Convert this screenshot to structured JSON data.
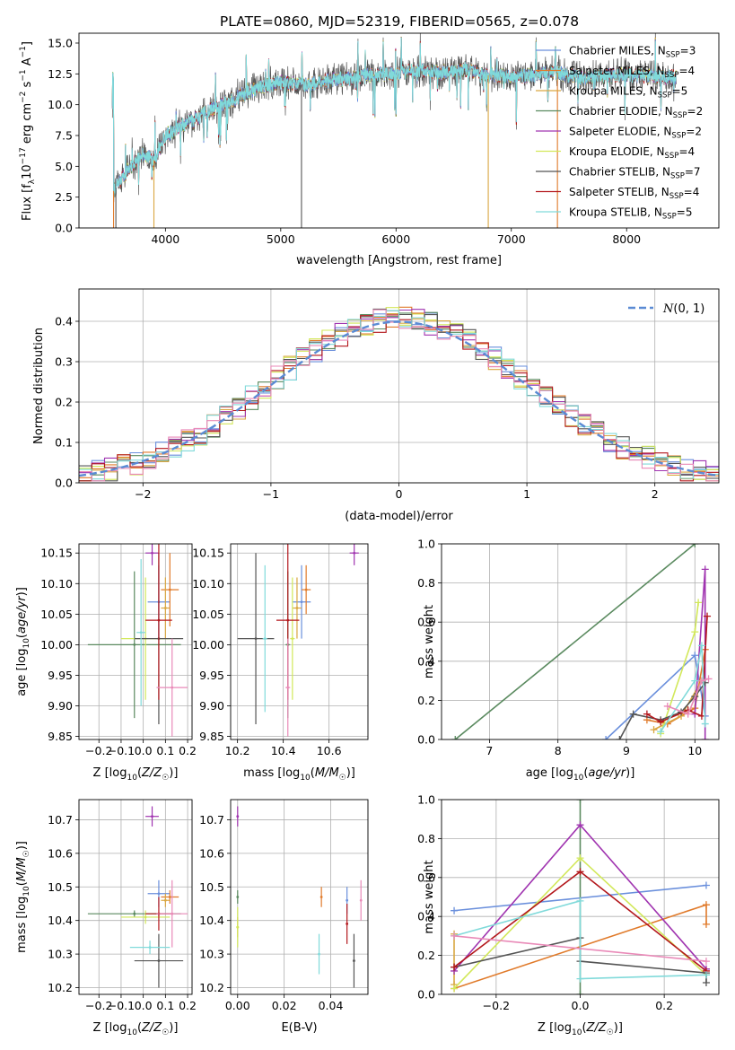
{
  "figure_title": "PLATE=0860, MJD=52319, FIBERID=0565, z=0.078",
  "colors": {
    "Chabrier MILES": "#6a8fdc",
    "Salpeter MILES": "#e07a2a",
    "Kroupa MILES": "#d9a640",
    "Chabrier ELODIE": "#5a8a5f",
    "Salpeter ELODIE": "#a034b0",
    "Kroupa ELODIE": "#d2e85a",
    "Chabrier STELIB": "#555555",
    "Salpeter STELIB": "#b3171c",
    "Kroupa STELIB": "#80dada",
    "extra": "#e98ab8",
    "gauss": "#5b8bd4"
  },
  "chart_data": [
    {
      "type": "line",
      "title": "PLATE=0860, MJD=52319, FIBERID=0565, z=0.078",
      "xlabel": "wavelength [Angstrom, rest frame]",
      "ylabel": "Flux [f_λ 10^-17 erg cm^-2 s^-1 A^-1]",
      "xlim": [
        3250,
        8800
      ],
      "ylim": [
        0,
        15.8
      ],
      "xticks": [
        4000,
        5000,
        6000,
        7000,
        8000
      ],
      "yticks": [
        0.0,
        2.5,
        5.0,
        7.5,
        10.0,
        12.5,
        15.0
      ],
      "legend": "upper-right",
      "legend_entries": [
        {
          "model": "Chabrier MILES",
          "nssp": "3"
        },
        {
          "model": "Salpeter MILES",
          "nssp": "4"
        },
        {
          "model": "Kroupa MILES",
          "nssp": "5"
        },
        {
          "model": "Chabrier ELODIE",
          "nssp": "2"
        },
        {
          "model": "Salpeter ELODIE",
          "nssp": "2"
        },
        {
          "model": "Kroupa ELODIE",
          "nssp": "4"
        },
        {
          "model": "Chabrier STELIB",
          "nssp": "7"
        },
        {
          "model": "Salpeter STELIB",
          "nssp": "4"
        },
        {
          "model": "Kroupa STELIB",
          "nssp": "5"
        }
      ],
      "continuum": [
        [
          3550,
          3.0
        ],
        [
          3700,
          5.0
        ],
        [
          3800,
          6.0
        ],
        [
          3900,
          5.5
        ],
        [
          4000,
          7.5
        ],
        [
          4200,
          8.6
        ],
        [
          4400,
          9.6
        ],
        [
          4600,
          10.5
        ],
        [
          4800,
          11.4
        ],
        [
          5000,
          11.8
        ],
        [
          5200,
          11.6
        ],
        [
          5400,
          12.0
        ],
        [
          5600,
          12.1
        ],
        [
          5800,
          12.4
        ],
        [
          6000,
          12.6
        ],
        [
          6200,
          12.9
        ],
        [
          6400,
          12.6
        ],
        [
          6600,
          12.8
        ],
        [
          6800,
          12.4
        ],
        [
          7000,
          12.3
        ],
        [
          7200,
          12.4
        ],
        [
          7400,
          12.6
        ],
        [
          7600,
          12.2
        ],
        [
          7800,
          12.3
        ],
        [
          8000,
          12.4
        ],
        [
          8200,
          12.3
        ],
        [
          8400,
          12.2
        ]
      ]
    },
    {
      "type": "histogram",
      "xlabel": "(data-model)/error",
      "ylabel": "Normed distribution",
      "xlim": [
        -2.5,
        2.5
      ],
      "ylim": [
        0,
        0.48
      ],
      "xticks": [
        -2,
        -1,
        0,
        1,
        2
      ],
      "yticks": [
        0.0,
        0.1,
        0.2,
        0.3,
        0.4
      ],
      "grid": true,
      "legend": "upper-right",
      "gauss_label": "N(0,1)",
      "bin_width": 0.1,
      "n_bins": 50
    },
    {
      "type": "scatter",
      "xlabel": "Z [log10(Z/Z☉)]",
      "ylabel": "age  [log10(age/yr)]",
      "xlim": [
        -0.29,
        0.22
      ],
      "ylim": [
        9.845,
        10.165
      ],
      "xticks": [
        -0.2,
        -0.1,
        0.0,
        0.1,
        0.2
      ],
      "yticks": [
        9.85,
        9.9,
        9.95,
        10.0,
        10.05,
        10.1,
        10.15
      ],
      "grid": true,
      "points": [
        {
          "model": "Chabrier MILES",
          "x": 0.07,
          "xerr": 0.05,
          "y": 10.07,
          "yerr": 0.06
        },
        {
          "model": "Salpeter MILES",
          "x": 0.12,
          "xerr": 0.04,
          "y": 10.09,
          "yerr": 0.06
        },
        {
          "model": "Kroupa MILES",
          "x": 0.1,
          "xerr": 0.02,
          "y": 10.06,
          "yerr": 0.05
        },
        {
          "model": "Chabrier ELODIE",
          "x": -0.04,
          "xerr": 0.21,
          "y": 10.0,
          "yerr": 0.12
        },
        {
          "model": "Salpeter ELODIE",
          "x": 0.04,
          "xerr": 0.03,
          "y": 10.15,
          "yerr": 0.02
        },
        {
          "model": "Kroupa ELODIE",
          "x": 0.01,
          "xerr": 0.11,
          "y": 10.01,
          "yerr": 0.1
        },
        {
          "model": "Chabrier STELIB",
          "x": 0.07,
          "xerr": 0.11,
          "y": 10.01,
          "yerr": 0.14
        },
        {
          "model": "Salpeter STELIB",
          "x": 0.07,
          "xerr": 0.06,
          "y": 10.04,
          "yerr": 0.13
        },
        {
          "model": "Kroupa STELIB",
          "x": -0.01,
          "xerr": 0.02,
          "y": 10.02,
          "yerr": 0.12
        },
        {
          "model": "extra",
          "x": 0.13,
          "xerr": 0.07,
          "y": 9.93,
          "yerr": 0.08
        }
      ]
    },
    {
      "type": "scatter",
      "xlabel": "mass [log10(M/M☉)]",
      "ylabel": "",
      "xlim": [
        10.17,
        10.77
      ],
      "ylim": [
        9.845,
        10.165
      ],
      "xticks": [
        10.2,
        10.4,
        10.6
      ],
      "yticks": [
        9.85,
        9.9,
        9.95,
        10.0,
        10.05,
        10.1,
        10.15
      ],
      "grid": true,
      "points": [
        {
          "model": "Chabrier MILES",
          "x": 10.48,
          "xerr": 0.04,
          "y": 10.07,
          "yerr": 0.06
        },
        {
          "model": "Salpeter MILES",
          "x": 10.5,
          "xerr": 0.02,
          "y": 10.09,
          "yerr": 0.04
        },
        {
          "model": "Kroupa MILES",
          "x": 10.46,
          "xerr": 0.02,
          "y": 10.06,
          "yerr": 0.05
        },
        {
          "model": "Chabrier ELODIE",
          "x": 10.42,
          "xerr": 0.01,
          "y": 10.0,
          "yerr": 0.12
        },
        {
          "model": "Salpeter ELODIE",
          "x": 10.71,
          "xerr": 0.02,
          "y": 10.15,
          "yerr": 0.02
        },
        {
          "model": "Kroupa ELODIE",
          "x": 10.44,
          "xerr": 0.01,
          "y": 10.01,
          "yerr": 0.1
        },
        {
          "model": "Chabrier STELIB",
          "x": 10.28,
          "xerr": 0.08,
          "y": 10.01,
          "yerr": 0.14
        },
        {
          "model": "Salpeter STELIB",
          "x": 10.42,
          "xerr": 0.05,
          "y": 10.04,
          "yerr": 0.13
        },
        {
          "model": "Kroupa STELIB",
          "x": 10.32,
          "xerr": 0.01,
          "y": 10.01,
          "yerr": 0.12
        },
        {
          "model": "extra",
          "x": 10.42,
          "xerr": 0.01,
          "y": 9.93,
          "yerr": 0.08
        }
      ]
    },
    {
      "type": "line",
      "xlabel": "age  [log10(age/yr)]",
      "ylabel": "mass weight",
      "xlim": [
        6.3,
        10.35
      ],
      "ylim": [
        0,
        1.0
      ],
      "xticks": [
        7,
        8,
        9,
        10
      ],
      "yticks": [
        0.0,
        0.2,
        0.4,
        0.6,
        0.8,
        1.0
      ],
      "grid": true,
      "series": [
        {
          "model": "Chabrier ELODIE",
          "x": [
            6.5,
            10.0
          ],
          "y": [
            0.0,
            1.0
          ]
        },
        {
          "model": "Chabrier MILES",
          "x": [
            8.7,
            10.0,
            10.15
          ],
          "y": [
            0.0,
            0.43,
            0.12
          ]
        },
        {
          "model": "Salpeter MILES",
          "x": [
            9.3,
            9.6,
            10.0,
            10.15
          ],
          "y": [
            0.1,
            0.08,
            0.16,
            0.46
          ]
        },
        {
          "model": "Kroupa MILES",
          "x": [
            9.4,
            9.8,
            10.1
          ],
          "y": [
            0.05,
            0.12,
            0.3
          ]
        },
        {
          "model": "Salpeter ELODIE",
          "x": [
            10.0,
            10.15,
            10.15
          ],
          "y": [
            0.13,
            0.87,
            0.0
          ]
        },
        {
          "model": "Kroupa ELODIE",
          "x": [
            9.5,
            10.0,
            10.05
          ],
          "y": [
            0.03,
            0.55,
            0.7
          ]
        },
        {
          "model": "Chabrier STELIB",
          "x": [
            8.9,
            9.1,
            9.5,
            9.8,
            10.0,
            10.15
          ],
          "y": [
            0.0,
            0.13,
            0.1,
            0.14,
            0.22,
            0.29
          ]
        },
        {
          "model": "Salpeter STELIB",
          "x": [
            9.3,
            9.5,
            9.9,
            10.1,
            10.18
          ],
          "y": [
            0.13,
            0.09,
            0.15,
            0.12,
            0.63
          ]
        },
        {
          "model": "Kroupa STELIB",
          "x": [
            9.5,
            10.0,
            10.1,
            10.15
          ],
          "y": [
            0.04,
            0.3,
            0.48,
            0.08
          ]
        },
        {
          "model": "extra",
          "x": [
            9.6,
            9.9,
            10.1,
            10.2
          ],
          "y": [
            0.17,
            0.13,
            0.3,
            0.31
          ]
        }
      ]
    },
    {
      "type": "scatter",
      "xlabel": "Z [log10(Z/Z☉)]",
      "ylabel": "mass [log10(M/M☉)]",
      "xlim": [
        -0.29,
        0.22
      ],
      "ylim": [
        10.18,
        10.76
      ],
      "xticks": [
        -0.2,
        -0.1,
        0.0,
        0.1,
        0.2
      ],
      "yticks": [
        10.2,
        10.3,
        10.4,
        10.5,
        10.6,
        10.7
      ],
      "grid": true,
      "points": [
        {
          "model": "Chabrier MILES",
          "x": 0.07,
          "xerr": 0.05,
          "y": 10.48,
          "yerr": 0.04
        },
        {
          "model": "Salpeter MILES",
          "x": 0.12,
          "xerr": 0.04,
          "y": 10.47,
          "yerr": 0.02
        },
        {
          "model": "Kroupa MILES",
          "x": 0.1,
          "xerr": 0.02,
          "y": 10.46,
          "yerr": 0.02
        },
        {
          "model": "Chabrier ELODIE",
          "x": -0.04,
          "xerr": 0.21,
          "y": 10.42,
          "yerr": 0.01
        },
        {
          "model": "Salpeter ELODIE",
          "x": 0.04,
          "xerr": 0.03,
          "y": 10.71,
          "yerr": 0.03
        },
        {
          "model": "Kroupa ELODIE",
          "x": 0.01,
          "xerr": 0.11,
          "y": 10.41,
          "yerr": 0.02
        },
        {
          "model": "Chabrier STELIB",
          "x": 0.07,
          "xerr": 0.11,
          "y": 10.28,
          "yerr": 0.08
        },
        {
          "model": "Salpeter STELIB",
          "x": 0.07,
          "xerr": 0.06,
          "y": 10.42,
          "yerr": 0.05
        },
        {
          "model": "Kroupa STELIB",
          "x": 0.03,
          "xerr": 0.09,
          "y": 10.32,
          "yerr": 0.02
        },
        {
          "model": "extra",
          "x": 0.13,
          "xerr": 0.07,
          "y": 10.42,
          "yerr": 0.1
        }
      ]
    },
    {
      "type": "scatter",
      "xlabel": "E(B-V)",
      "ylabel": "",
      "xlim": [
        -0.003,
        0.056
      ],
      "ylim": [
        10.18,
        10.76
      ],
      "xticks": [
        0.0,
        0.02,
        0.04
      ],
      "yticks": [
        10.2,
        10.3,
        10.4,
        10.5,
        10.6,
        10.7
      ],
      "grid": true,
      "points": [
        {
          "model": "Chabrier MILES",
          "x": 0.047,
          "xerr": 0,
          "y": 10.46,
          "yerr": 0.04
        },
        {
          "model": "Salpeter MILES",
          "x": 0.036,
          "xerr": 0,
          "y": 10.47,
          "yerr": 0.03
        },
        {
          "model": "Kroupa MILES",
          "x": 0.0,
          "xerr": 0,
          "y": 10.38,
          "yerr": 0.03
        },
        {
          "model": "Chabrier ELODIE",
          "x": 0.0,
          "xerr": 0,
          "y": 10.47,
          "yerr": 0.02
        },
        {
          "model": "Salpeter ELODIE",
          "x": 0.0,
          "xerr": 0,
          "y": 10.71,
          "yerr": 0.03
        },
        {
          "model": "Kroupa ELODIE",
          "x": 0.0,
          "xerr": 0,
          "y": 10.38,
          "yerr": 0.06
        },
        {
          "model": "Chabrier STELIB",
          "x": 0.05,
          "xerr": 0,
          "y": 10.28,
          "yerr": 0.08
        },
        {
          "model": "Salpeter STELIB",
          "x": 0.047,
          "xerr": 0,
          "y": 10.39,
          "yerr": 0.06
        },
        {
          "model": "Kroupa STELIB",
          "x": 0.035,
          "xerr": 0,
          "y": 10.3,
          "yerr": 0.06
        },
        {
          "model": "extra",
          "x": 0.053,
          "xerr": 0,
          "y": 10.46,
          "yerr": 0.06
        }
      ]
    },
    {
      "type": "line",
      "xlabel": "Z [log10(Z/Z☉)]",
      "ylabel": "mass weight",
      "xlim": [
        -0.33,
        0.33
      ],
      "ylim": [
        0,
        1.0
      ],
      "xticks": [
        -0.2,
        0.0,
        0.2
      ],
      "yticks": [
        0.0,
        0.2,
        0.4,
        0.6,
        0.8,
        1.0
      ],
      "grid": true,
      "series": [
        {
          "model": "Chabrier MILES",
          "x": [
            -0.3,
            0.3
          ],
          "y": [
            0.43,
            0.56
          ]
        },
        {
          "model": "Salpeter MILES",
          "x": [
            -0.3,
            0.3,
            0.3
          ],
          "y": [
            0.03,
            0.46,
            0.36
          ]
        },
        {
          "model": "Kroupa MILES",
          "x": [
            -0.3,
            -0.3
          ],
          "y": [
            0.31,
            0.05
          ]
        },
        {
          "model": "Chabrier ELODIE",
          "x": [
            0.0,
            0.0
          ],
          "y": [
            0.0,
            1.0
          ]
        },
        {
          "model": "Salpeter ELODIE",
          "x": [
            -0.3,
            0.0,
            0.3
          ],
          "y": [
            0.12,
            0.87,
            0.13
          ]
        },
        {
          "model": "Kroupa ELODIE",
          "x": [
            -0.3,
            0.0,
            0.3
          ],
          "y": [
            0.03,
            0.7,
            0.1
          ]
        },
        {
          "model": "Chabrier STELIB",
          "x": [
            -0.3,
            0.0,
            0.0,
            0.3,
            0.3
          ],
          "y": [
            0.14,
            0.29,
            0.17,
            0.11,
            0.06
          ]
        },
        {
          "model": "Salpeter STELIB",
          "x": [
            -0.3,
            0.0,
            0.3
          ],
          "y": [
            0.14,
            0.63,
            0.12
          ]
        },
        {
          "model": "Kroupa STELIB",
          "x": [
            -0.3,
            0.0,
            0.0,
            0.3
          ],
          "y": [
            0.3,
            0.48,
            0.08,
            0.1
          ]
        },
        {
          "model": "extra",
          "x": [
            -0.3,
            0.3
          ],
          "y": [
            0.3,
            0.17
          ]
        }
      ]
    }
  ]
}
